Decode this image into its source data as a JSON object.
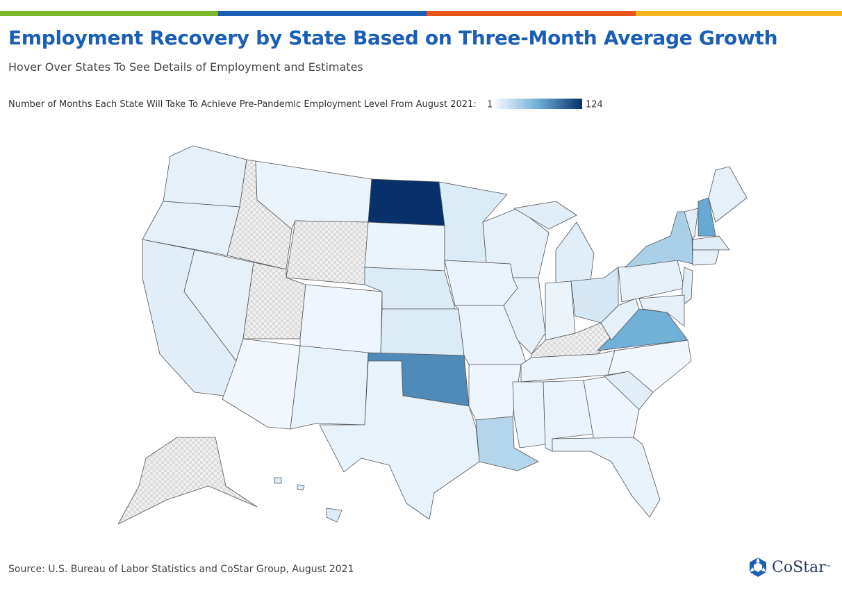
{
  "header": {
    "title": "Employment Recovery by State Based on Three-Month Average Growth",
    "subtitle": "Hover Over States To See Details of Employment and Estimates"
  },
  "chart_data": {
    "type": "choropleth",
    "legend_label": "Number of Months Each State Will Take To Achieve Pre-Pandemic Employment Level From August 2021:",
    "range": [
      1,
      124
    ],
    "colors": [
      "#f5f9fe",
      "#6baed6",
      "#08306b"
    ],
    "values": [
      8,
      8,
      10,
      8,
      null,
      5,
      null,
      null,
      3,
      4,
      7,
      124,
      5,
      12,
      12,
      80,
      7,
      12,
      6,
      6,
      4,
      30,
      8,
      8,
      10,
      5,
      15,
      null,
      5,
      6,
      6,
      4,
      7,
      10,
      3,
      60,
      8,
      8,
      35,
      10,
      65,
      8,
      10,
      8,
      10,
      8,
      null,
      12
    ]
  },
  "source": "Source: U.S. Bureau of Labor Statistics and CoStar Group, August 2021",
  "logo": {
    "name": "CoStar",
    "mark": "™"
  }
}
